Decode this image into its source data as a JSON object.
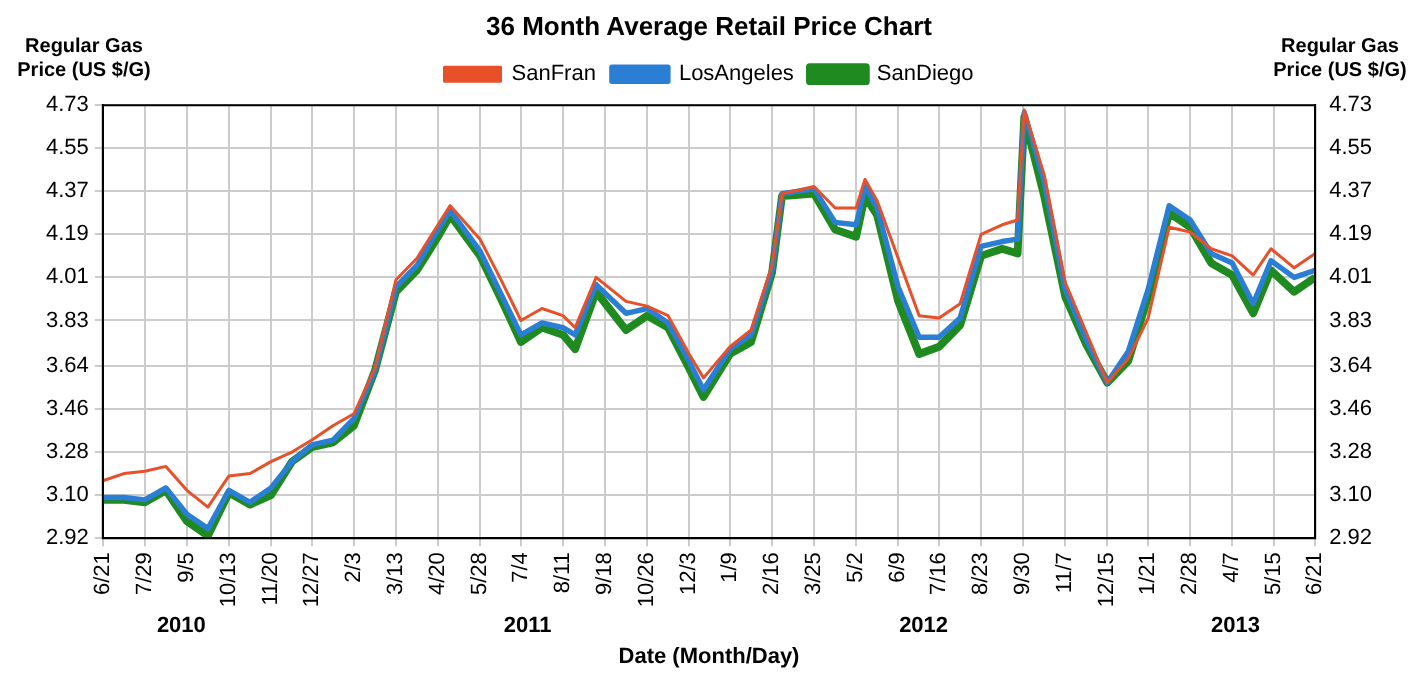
{
  "chart_data": {
    "type": "line",
    "title": "36 Month Average Retail Price Chart",
    "xlabel": "Date (Month/Day)",
    "ylabel": "Regular Gas Price (US $/G)",
    "y2label": "Regular Gas Price (US $/G)",
    "x": [
      "2010-06-21",
      "2010-07-10",
      "2010-07-29",
      "2010-08-17",
      "2010-09-05",
      "2010-09-24",
      "2010-10-13",
      "2010-11-01",
      "2010-11-20",
      "2010-12-09",
      "2010-12-27",
      "2011-01-15",
      "2011-02-03",
      "2011-02-22",
      "2011-03-13",
      "2011-04-01",
      "2011-04-20",
      "2011-05-01",
      "2011-05-28",
      "2011-06-16",
      "2011-07-04",
      "2011-07-23",
      "2011-08-11",
      "2011-08-22",
      "2011-09-10",
      "2011-10-07",
      "2011-10-26",
      "2011-11-14",
      "2011-12-03",
      "2011-12-16",
      "2012-01-09",
      "2012-01-28",
      "2012-02-16",
      "2012-02-25",
      "2012-03-25",
      "2012-04-13",
      "2012-05-02",
      "2012-05-10",
      "2012-05-21",
      "2012-06-09",
      "2012-06-28",
      "2012-07-16",
      "2012-08-04",
      "2012-08-23",
      "2012-09-11",
      "2012-09-25",
      "2012-10-01",
      "2012-10-19",
      "2012-11-07",
      "2012-11-26",
      "2012-12-15",
      "2013-01-03",
      "2013-01-21",
      "2013-02-09",
      "2013-02-28",
      "2013-03-19",
      "2013-04-07",
      "2013-04-26",
      "2013-05-12",
      "2013-06-02",
      "2013-06-21"
    ],
    "series": [
      {
        "name": "SanFran",
        "color": "#e8502a",
        "values": [
          3.16,
          3.19,
          3.2,
          3.22,
          3.12,
          3.05,
          3.18,
          3.19,
          3.24,
          3.28,
          3.33,
          3.39,
          3.44,
          3.63,
          4.0,
          4.09,
          4.23,
          4.31,
          4.17,
          4.0,
          3.83,
          3.88,
          3.85,
          3.8,
          4.01,
          3.91,
          3.89,
          3.85,
          3.69,
          3.59,
          3.72,
          3.79,
          4.06,
          4.36,
          4.39,
          4.3,
          4.3,
          4.42,
          4.33,
          4.09,
          3.85,
          3.84,
          3.9,
          4.19,
          4.23,
          4.25,
          4.71,
          4.44,
          3.99,
          3.78,
          3.57,
          3.67,
          3.84,
          4.22,
          4.2,
          4.13,
          4.1,
          4.02,
          4.13,
          4.05,
          4.11
        ]
      },
      {
        "name": "LosAngeles",
        "color": "#2a7fd4",
        "values": [
          3.09,
          3.09,
          3.08,
          3.13,
          3.02,
          2.96,
          3.12,
          3.07,
          3.13,
          3.24,
          3.31,
          3.33,
          3.42,
          3.62,
          3.97,
          4.06,
          4.21,
          4.29,
          4.12,
          3.94,
          3.77,
          3.82,
          3.8,
          3.77,
          3.98,
          3.86,
          3.88,
          3.82,
          3.66,
          3.54,
          3.71,
          3.77,
          4.04,
          4.36,
          4.38,
          4.24,
          4.23,
          4.39,
          4.3,
          3.97,
          3.76,
          3.76,
          3.84,
          4.14,
          4.16,
          4.17,
          4.7,
          4.41,
          3.96,
          3.75,
          3.57,
          3.7,
          3.96,
          4.31,
          4.25,
          4.11,
          4.07,
          3.9,
          4.08,
          4.01,
          4.04
        ]
      },
      {
        "name": "SanDiego",
        "color": "#1f8a1f",
        "values": [
          3.08,
          3.08,
          3.07,
          3.12,
          2.99,
          2.93,
          3.11,
          3.06,
          3.1,
          3.24,
          3.3,
          3.32,
          3.39,
          3.62,
          3.95,
          4.04,
          4.18,
          4.27,
          4.1,
          3.92,
          3.74,
          3.8,
          3.77,
          3.71,
          3.95,
          3.79,
          3.85,
          3.8,
          3.63,
          3.51,
          3.69,
          3.74,
          4.03,
          4.35,
          4.36,
          4.21,
          4.18,
          4.35,
          4.27,
          3.91,
          3.69,
          3.72,
          3.81,
          4.1,
          4.13,
          4.11,
          4.68,
          4.35,
          3.93,
          3.73,
          3.57,
          3.66,
          3.93,
          4.28,
          4.22,
          4.07,
          4.02,
          3.86,
          4.04,
          3.95,
          4.01
        ]
      }
    ],
    "xlim": [
      "2010-06-21",
      "2013-06-21"
    ],
    "xticks": [
      {
        "value": "2010-06-21",
        "label": "6/21"
      },
      {
        "value": "2010-07-29",
        "label": "7/29"
      },
      {
        "value": "2010-09-05",
        "label": "9/5"
      },
      {
        "value": "2010-10-13",
        "label": "10/13"
      },
      {
        "value": "2010-11-20",
        "label": "11/20"
      },
      {
        "value": "2010-12-27",
        "label": "12/27"
      },
      {
        "value": "2011-02-03",
        "label": "2/3"
      },
      {
        "value": "2011-03-13",
        "label": "3/13"
      },
      {
        "value": "2011-04-20",
        "label": "4/20"
      },
      {
        "value": "2011-05-28",
        "label": "5/28"
      },
      {
        "value": "2011-07-04",
        "label": "7/4"
      },
      {
        "value": "2011-08-11",
        "label": "8/11"
      },
      {
        "value": "2011-09-18",
        "label": "9/18"
      },
      {
        "value": "2011-10-26",
        "label": "10/26"
      },
      {
        "value": "2011-12-03",
        "label": "12/3"
      },
      {
        "value": "2012-01-09",
        "label": "1/9"
      },
      {
        "value": "2012-02-16",
        "label": "2/16"
      },
      {
        "value": "2012-03-25",
        "label": "3/25"
      },
      {
        "value": "2012-05-02",
        "label": "5/2"
      },
      {
        "value": "2012-06-09",
        "label": "6/9"
      },
      {
        "value": "2012-07-16",
        "label": "7/16"
      },
      {
        "value": "2012-08-23",
        "label": "8/23"
      },
      {
        "value": "2012-09-30",
        "label": "9/30"
      },
      {
        "value": "2012-11-07",
        "label": "11/7"
      },
      {
        "value": "2012-12-15",
        "label": "12/15"
      },
      {
        "value": "2013-01-21",
        "label": "1/21"
      },
      {
        "value": "2013-02-28",
        "label": "2/28"
      },
      {
        "value": "2013-04-07",
        "label": "4/7"
      },
      {
        "value": "2013-05-15",
        "label": "5/15"
      },
      {
        "value": "2013-06-21",
        "label": "6/21"
      }
    ],
    "x2lim": [
      "2010-06-21",
      "2013-06-21"
    ],
    "x2ticks": [
      {
        "value": "2010-08-31",
        "label": "2010"
      },
      {
        "value": "2011-07-10",
        "label": "2011"
      },
      {
        "value": "2012-07-02",
        "label": "2012"
      },
      {
        "value": "2013-04-10",
        "label": "2013"
      }
    ],
    "ylim": [
      2.92,
      4.73
    ],
    "yticks": [
      2.92,
      {
        "value": 3.1,
        "label": "3.10"
      },
      3.28,
      3.46,
      3.64,
      3.83,
      4.01,
      4.19,
      4.37,
      4.55,
      4.73
    ],
    "y2lim": [
      2.92,
      4.73
    ],
    "y2ticks": [
      2.92,
      {
        "value": 3.1,
        "label": "3.10"
      },
      3.28,
      3.46,
      3.64,
      3.83,
      4.01,
      4.19,
      4.37,
      4.55,
      4.73
    ],
    "grid": true,
    "legend": "top",
    "marker": "none",
    "line_style": "solid"
  }
}
